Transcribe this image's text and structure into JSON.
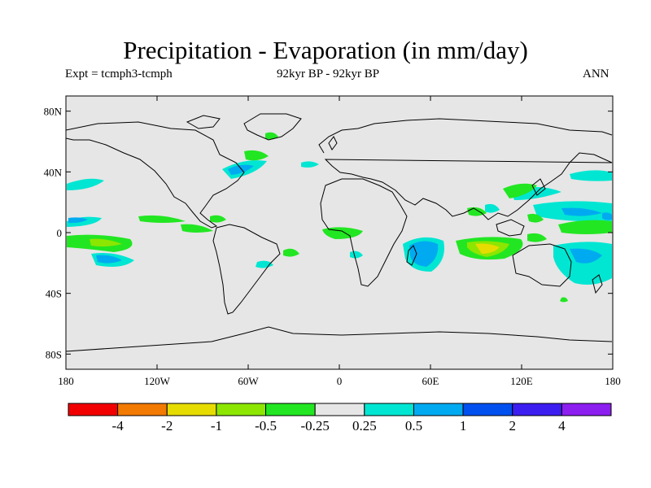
{
  "title": "Precipitation - Evaporation (in mm/day)",
  "subtitle_left": "Expt = tcmph3-tcmph",
  "subtitle_center": "92kyr BP - 92kyr BP",
  "subtitle_right": "ANN",
  "map": {
    "lon_range": [
      -180,
      180
    ],
    "lat_range": [
      -90,
      90
    ],
    "ocean_fill": "#e6e6e6",
    "coastline_color": "#000000",
    "lon_ticks": [
      {
        "value": -180,
        "label": "180"
      },
      {
        "value": -120,
        "label": "120W"
      },
      {
        "value": -60,
        "label": "60W"
      },
      {
        "value": 0,
        "label": "0"
      },
      {
        "value": 60,
        "label": "60E"
      },
      {
        "value": 120,
        "label": "120E"
      },
      {
        "value": 180,
        "label": "180"
      }
    ],
    "lat_ticks": [
      {
        "value": 80,
        "label": "80N"
      },
      {
        "value": 40,
        "label": "40N"
      },
      {
        "value": 0,
        "label": "0"
      },
      {
        "value": -40,
        "label": "40S"
      },
      {
        "value": -80,
        "label": "80S"
      }
    ]
  },
  "colorbar": {
    "colors": [
      "#f20000",
      "#f27a00",
      "#e6dc00",
      "#8ce600",
      "#22e622",
      "#e6e6e6",
      "#00e6d2",
      "#00aaf0",
      "#0050f0",
      "#3c1ef0",
      "#8c1ef0"
    ],
    "labels": [
      "-4",
      "-2",
      "-1",
      "-0.5",
      "-0.25",
      "0.25",
      "0.5",
      "1",
      "2",
      "4"
    ]
  }
}
